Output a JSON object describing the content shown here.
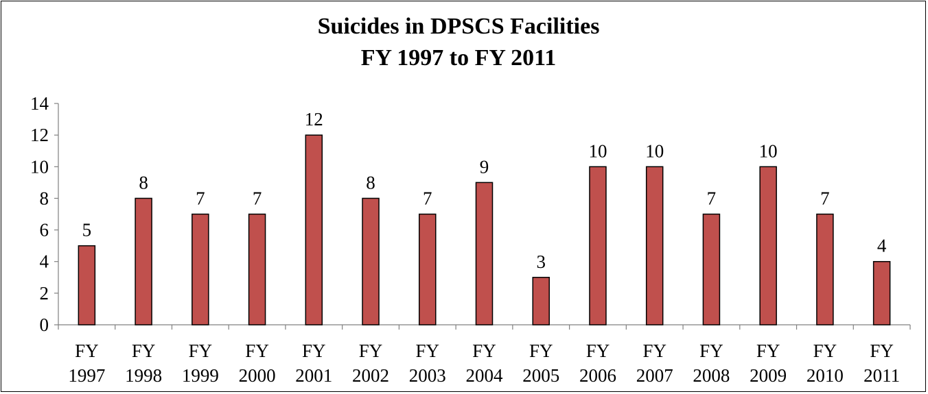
{
  "chart_data": {
    "type": "bar",
    "title": "Suicides in DPSCS Facilities",
    "subtitle": "FY 1997 to FY 2011",
    "xlabel": "",
    "ylabel": "",
    "categories": [
      "FY 1997",
      "FY 1998",
      "FY 1999",
      "FY 2000",
      "FY 2001",
      "FY 2002",
      "FY 2003",
      "FY 2004",
      "FY 2005",
      "FY 2006",
      "FY 2007",
      "FY 2008",
      "FY 2009",
      "FY 2010",
      "FY 2011"
    ],
    "values": [
      5,
      8,
      7,
      7,
      12,
      8,
      7,
      9,
      3,
      10,
      10,
      7,
      10,
      7,
      4
    ],
    "ylim": [
      0,
      14
    ],
    "yticks": [
      "0",
      "2",
      "4",
      "6",
      "8",
      "10",
      "12",
      "14"
    ],
    "grid": false,
    "legend": "none",
    "data_labels": true,
    "bar_color": "#C0504D",
    "bar_edge_color": "#000000"
  }
}
